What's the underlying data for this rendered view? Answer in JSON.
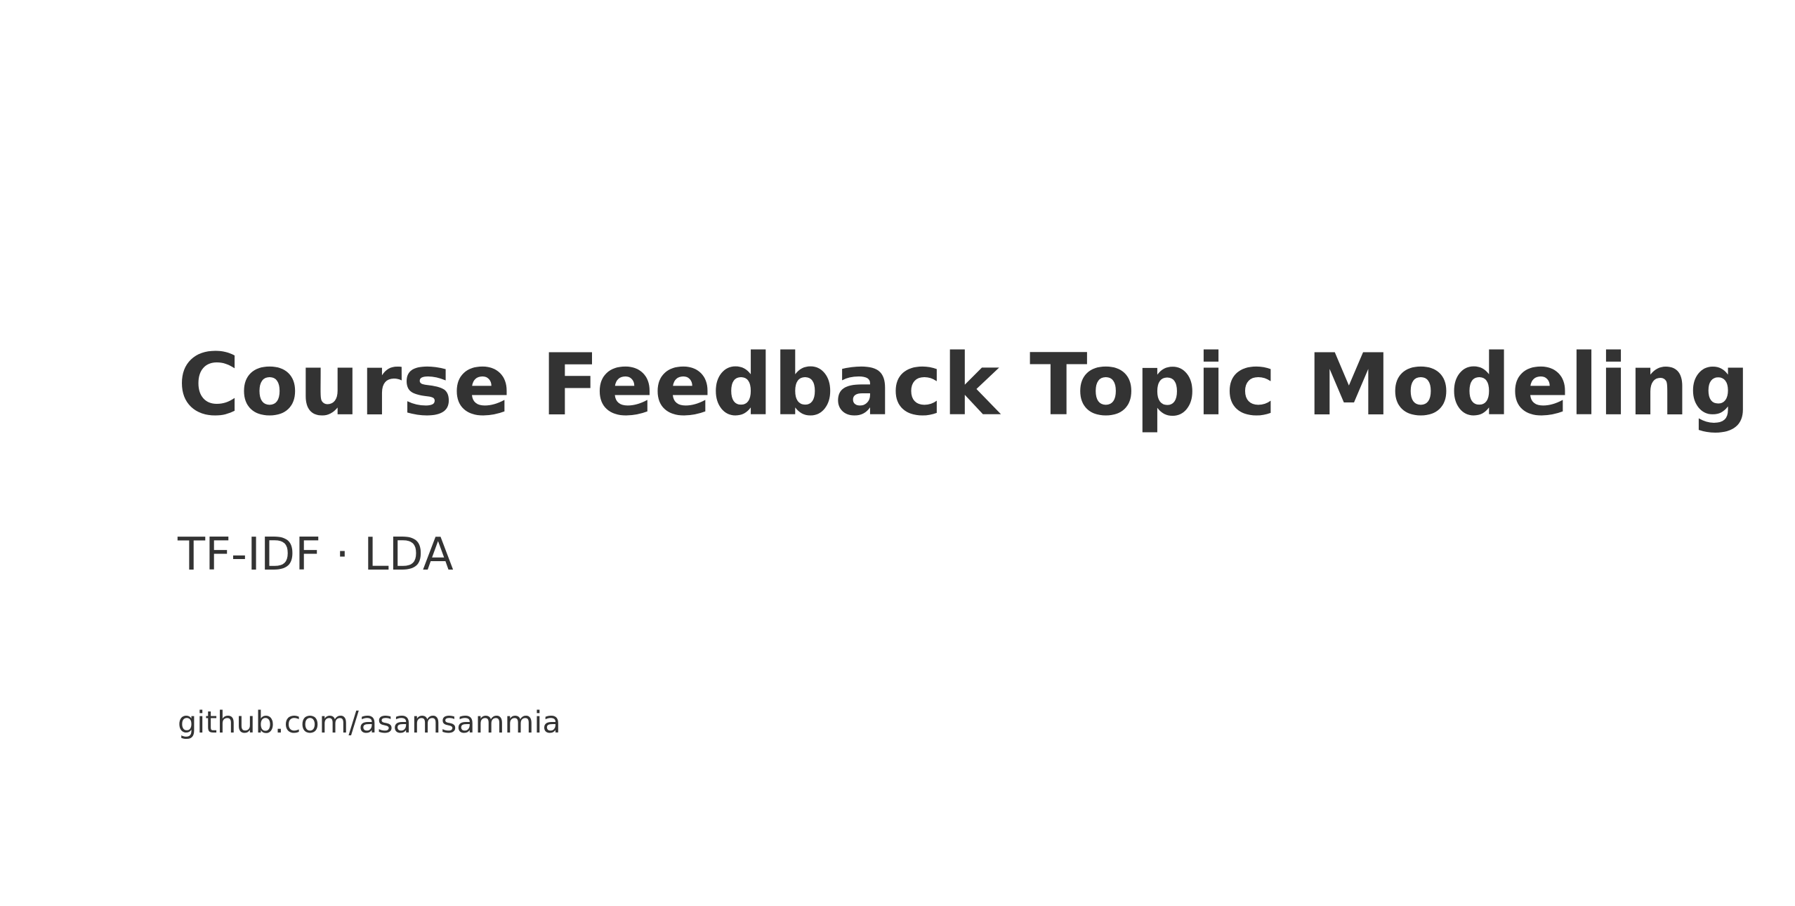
{
  "slide": {
    "title": "Course Feedback Topic Modeling",
    "subtitle": "TF-IDF · LDA",
    "link": "github.com/asamsammia"
  },
  "colors": {
    "background": "#ffffff",
    "text": "#333333"
  }
}
